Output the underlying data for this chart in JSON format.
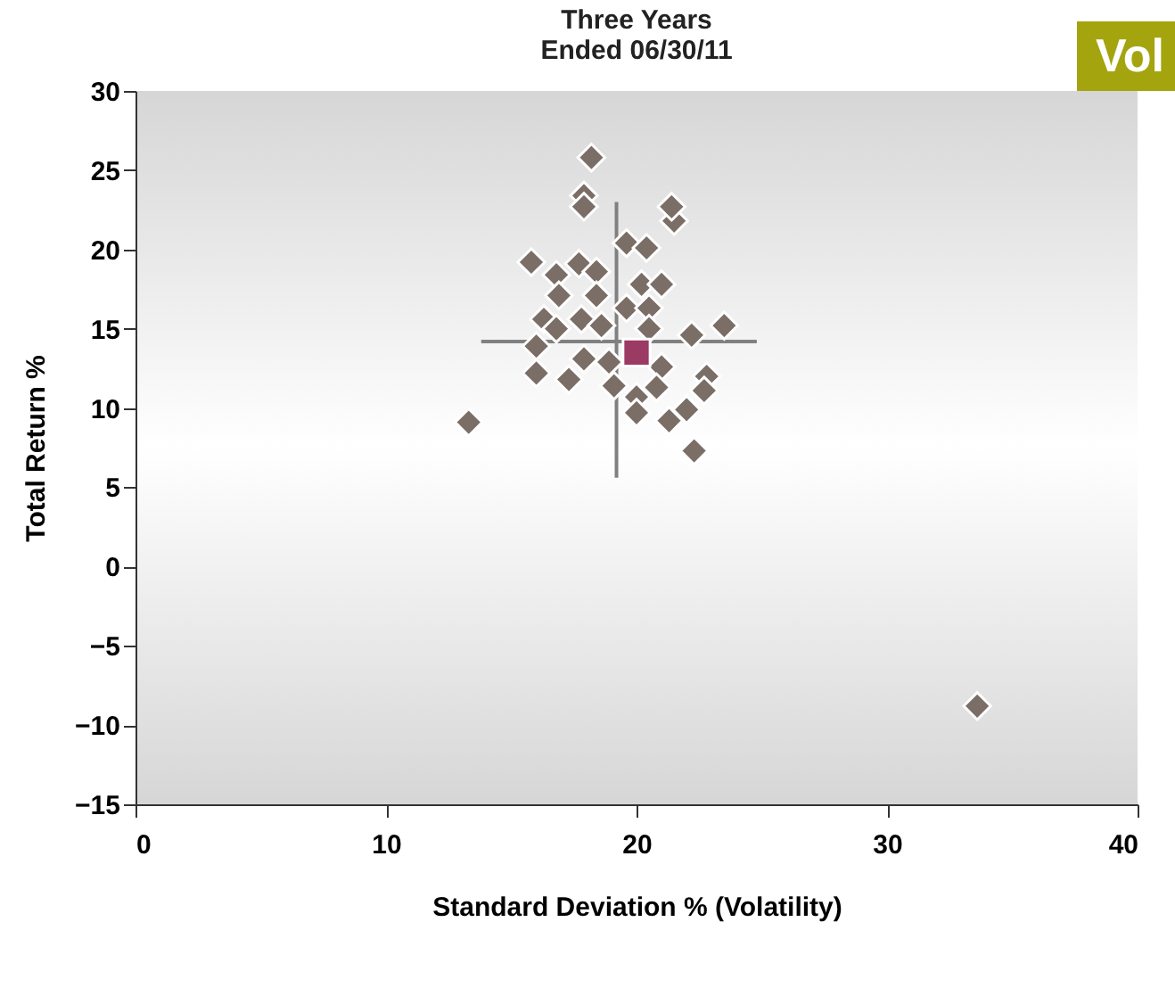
{
  "chart_data": {
    "type": "scatter",
    "title": "Three Years",
    "subtitle": "Ended 06/30/11",
    "xlabel": "Standard Deviation % (Volatility)",
    "ylabel": "Total Return %",
    "annotations": [
      "Vol"
    ],
    "xlim": [
      0,
      40
    ],
    "xticks": [
      0,
      10,
      20,
      30,
      40
    ],
    "ylim": [
      -15,
      30
    ],
    "yticks": [
      -15,
      -10,
      -5,
      0,
      5,
      10,
      15,
      20,
      25,
      30
    ],
    "grid": false,
    "series": [
      {
        "type": "line",
        "color": "#808080",
        "x": [
          19.2,
          19.2
        ],
        "values": [
          23,
          5.6
        ]
      },
      {
        "type": "line",
        "color": "#808080",
        "x": [
          13.8,
          24.8
        ],
        "values": [
          14.2,
          14.2
        ]
      },
      {
        "type": "scatter",
        "marker": "diamond",
        "color": "#7a6e66",
        "x": [
          18.2,
          17.9,
          17.9,
          21.5,
          21.4,
          15.8,
          16.8,
          17.7,
          19.6,
          20.4,
          20.2,
          18.4,
          16.9,
          18.4,
          19.6,
          16.3,
          17.8,
          20.5,
          16.8,
          18.6,
          20.5,
          22.2,
          23.5,
          16.0,
          17.9,
          16.0,
          17.3,
          18.9,
          21.0,
          20.0,
          19.1,
          20.8,
          22.8,
          22.7,
          22.0,
          21.3,
          22.3,
          20.0,
          13.3,
          21.0,
          33.6
        ],
        "values": [
          25.8,
          23.4,
          22.7,
          21.8,
          22.7,
          19.2,
          18.4,
          19.1,
          20.4,
          20.1,
          17.8,
          18.6,
          17.1,
          17.1,
          16.3,
          15.6,
          15.6,
          16.3,
          15.0,
          15.2,
          15.0,
          14.6,
          15.2,
          13.9,
          13.1,
          12.2,
          11.8,
          12.9,
          12.6,
          10.7,
          11.4,
          11.3,
          12.0,
          11.1,
          9.9,
          9.2,
          7.3,
          9.7,
          9.1,
          17.8,
          -8.8
        ]
      },
      {
        "type": "scatter",
        "marker": "square",
        "color": "#9b3a63",
        "x": [
          20.0
        ],
        "values": [
          13.5
        ]
      }
    ]
  }
}
